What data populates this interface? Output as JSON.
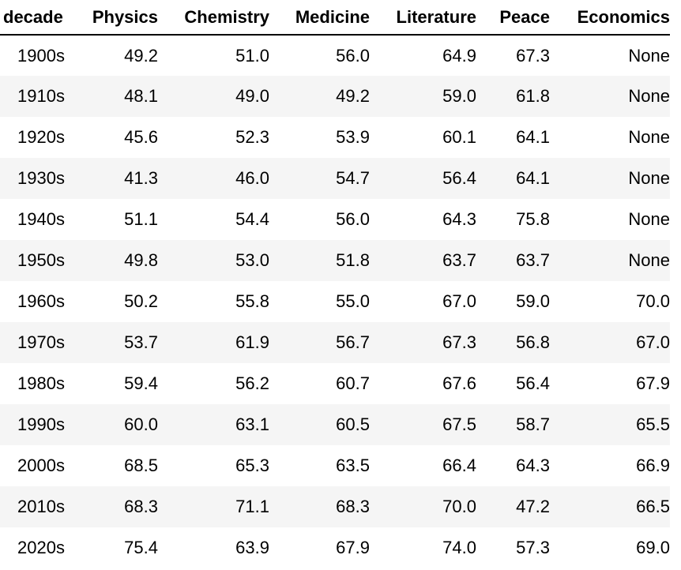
{
  "table": {
    "headers": [
      "decade",
      "Physics",
      "Chemistry",
      "Medicine",
      "Literature",
      "Peace",
      "Economics"
    ],
    "rows": [
      [
        "1900s",
        "49.2",
        "51.0",
        "56.0",
        "64.9",
        "67.3",
        "None"
      ],
      [
        "1910s",
        "48.1",
        "49.0",
        "49.2",
        "59.0",
        "61.8",
        "None"
      ],
      [
        "1920s",
        "45.6",
        "52.3",
        "53.9",
        "60.1",
        "64.1",
        "None"
      ],
      [
        "1930s",
        "41.3",
        "46.0",
        "54.7",
        "56.4",
        "64.1",
        "None"
      ],
      [
        "1940s",
        "51.1",
        "54.4",
        "56.0",
        "64.3",
        "75.8",
        "None"
      ],
      [
        "1950s",
        "49.8",
        "53.0",
        "51.8",
        "63.7",
        "63.7",
        "None"
      ],
      [
        "1960s",
        "50.2",
        "55.8",
        "55.0",
        "67.0",
        "59.0",
        "70.0"
      ],
      [
        "1970s",
        "53.7",
        "61.9",
        "56.7",
        "67.3",
        "56.8",
        "67.0"
      ],
      [
        "1980s",
        "59.4",
        "56.2",
        "60.7",
        "67.6",
        "56.4",
        "67.9"
      ],
      [
        "1990s",
        "60.0",
        "63.1",
        "60.5",
        "67.5",
        "58.7",
        "65.5"
      ],
      [
        "2000s",
        "68.5",
        "65.3",
        "63.5",
        "66.4",
        "64.3",
        "66.9"
      ],
      [
        "2010s",
        "68.3",
        "71.1",
        "68.3",
        "70.0",
        "47.2",
        "66.5"
      ],
      [
        "2020s",
        "75.4",
        "63.9",
        "67.9",
        "74.0",
        "57.3",
        "69.0"
      ]
    ]
  },
  "colors": {
    "stripe": "#f5f5f5",
    "header_rule": "#000000"
  }
}
